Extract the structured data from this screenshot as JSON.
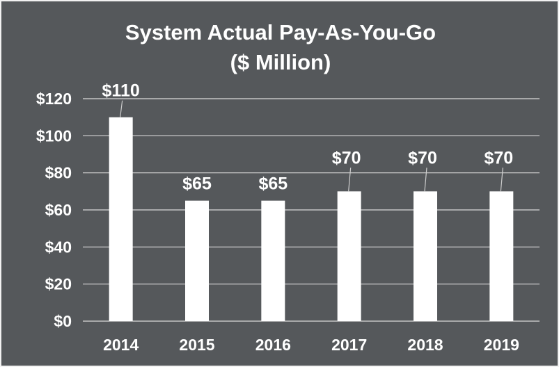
{
  "chart_data": {
    "type": "bar",
    "title": "System Actual Pay-As-You-Go",
    "subtitle": "($ Million)",
    "categories": [
      "2014",
      "2015",
      "2016",
      "2017",
      "2018",
      "2019"
    ],
    "values": [
      110,
      65,
      65,
      70,
      70,
      70
    ],
    "data_labels": [
      "$110",
      "$65",
      "$65",
      "$70",
      "$70",
      "$70"
    ],
    "ylim": [
      0,
      120
    ],
    "yticks": [
      0,
      20,
      40,
      60,
      80,
      100,
      120
    ],
    "ytick_labels": [
      "$0",
      "$20",
      "$40",
      "$60",
      "$80",
      "$100",
      "$120"
    ],
    "xlabel": "",
    "ylabel": "",
    "grid": true,
    "legend": "none",
    "colors": {
      "background": "#55585b",
      "bar": "#ffffff",
      "gridline": "#d9d9d9",
      "text": "#ffffff"
    }
  }
}
